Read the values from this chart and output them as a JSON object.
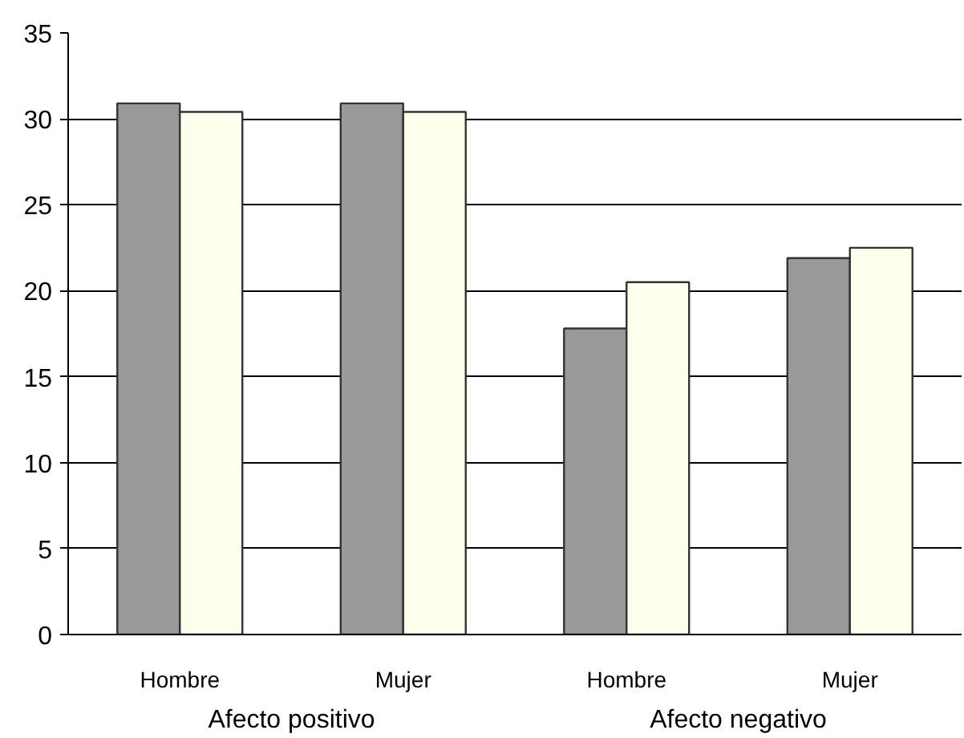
{
  "chart_data": {
    "type": "bar",
    "categories": [
      "Hombre",
      "Mujer",
      "Hombre",
      "Mujer"
    ],
    "series": [
      {
        "color": "#999999",
        "values": [
          30.9,
          30.9,
          17.8,
          21.9
        ]
      },
      {
        "color": "#ffffee",
        "values": [
          30.4,
          30.4,
          20.5,
          22.5
        ]
      }
    ],
    "ylim": [
      0,
      35
    ],
    "yticks": [
      0,
      5,
      10,
      15,
      20,
      25,
      30,
      35
    ],
    "grid": "y",
    "annotations": [
      "Afecto positivo",
      "Afecto negativo"
    ]
  }
}
